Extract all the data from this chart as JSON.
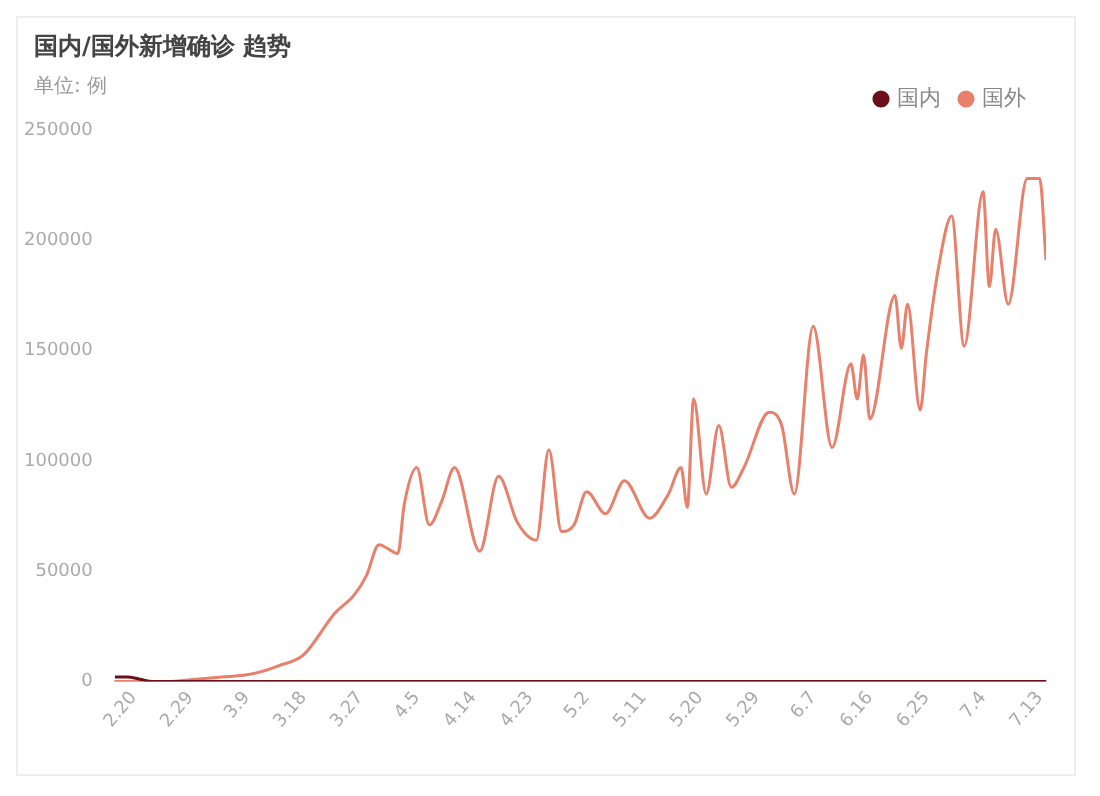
{
  "chart_data": {
    "type": "line",
    "title": "国内/国外新增确诊 趋势",
    "subtitle": "单位: 例",
    "x": [
      "--02-17",
      "--02-19",
      "--02-21",
      "--02-23",
      "--02-26",
      "--03-01",
      "--03-05",
      "--03-09",
      "--03-12",
      "--03-14",
      "--03-18",
      "--03-23",
      "--03-26",
      "--03-28",
      "--03-30",
      "--04-02",
      "--04-03",
      "--04-05",
      "--04-07",
      "--04-09",
      "--04-11",
      "--04-15",
      "--04-18",
      "--04-21",
      "--04-24",
      "--04-26",
      "--04-28",
      "--04-30",
      "--05-02",
      "--05-05",
      "--05-08",
      "--05-12",
      "--05-15",
      "--05-17",
      "--05-18",
      "--05-19",
      "--05-21",
      "--05-23",
      "--05-25",
      "--05-27",
      "--05-31",
      "--06-02",
      "--06-04",
      "--06-07",
      "--06-10",
      "--06-13",
      "--06-14",
      "--06-15",
      "--06-16",
      "--06-20",
      "--06-21",
      "--06-22",
      "--06-24",
      "--06-25",
      "--06-27",
      "--06-29",
      "--07-01",
      "--07-04",
      "--07-05",
      "--07-06",
      "--07-08",
      "--07-11",
      "--07-13",
      "--07-14"
    ],
    "series": [
      {
        "name": "国内",
        "color": "#6b0f1a",
        "values": [
          2000,
          2000,
          1000,
          0,
          0,
          0,
          0,
          0,
          0,
          0,
          0,
          0,
          0,
          0,
          0,
          0,
          0,
          0,
          0,
          0,
          0,
          0,
          0,
          0,
          0,
          0,
          0,
          0,
          0,
          0,
          0,
          0,
          0,
          0,
          0,
          0,
          0,
          0,
          0,
          0,
          0,
          0,
          0,
          0,
          0,
          0,
          0,
          0,
          0,
          0,
          0,
          0,
          0,
          0,
          0,
          0,
          0,
          0,
          0,
          0,
          0,
          0,
          0,
          0
        ]
      },
      {
        "name": "国外",
        "color": "#e8806b",
        "values": [
          0,
          0,
          0,
          0,
          0,
          1000,
          2000,
          3000,
          5000,
          7000,
          12000,
          31000,
          39000,
          48000,
          62000,
          58000,
          80000,
          97000,
          71000,
          82000,
          97000,
          59000,
          93000,
          72000,
          64000,
          105000,
          68000,
          71000,
          86000,
          76000,
          91000,
          74000,
          85000,
          97000,
          79000,
          128000,
          85000,
          116000,
          88000,
          97000,
          122000,
          116000,
          85000,
          161000,
          106000,
          144000,
          128000,
          148000,
          119000,
          175000,
          151000,
          171000,
          123000,
          149000,
          189000,
          211000,
          152000,
          222000,
          179000,
          205000,
          171000,
          228000,
          228000,
          191000
        ]
      }
    ],
    "xlim": [
      "--02-17",
      "--07-14"
    ],
    "xticks": [
      {
        "value": "--02-20",
        "label": "2.20"
      },
      {
        "value": "--02-29",
        "label": "2.29"
      },
      {
        "value": "--03-09",
        "label": "3.9"
      },
      {
        "value": "--03-18",
        "label": "3.18"
      },
      {
        "value": "--03-27",
        "label": "3.27"
      },
      {
        "value": "--04-05",
        "label": "4.5"
      },
      {
        "value": "--04-14",
        "label": "4.14"
      },
      {
        "value": "--04-23",
        "label": "4.23"
      },
      {
        "value": "--05-02",
        "label": "5.2"
      },
      {
        "value": "--05-11",
        "label": "5.11"
      },
      {
        "value": "--05-20",
        "label": "5.20"
      },
      {
        "value": "--05-29",
        "label": "5.29"
      },
      {
        "value": "--06-07",
        "label": "6.7"
      },
      {
        "value": "--06-16",
        "label": "6.16"
      },
      {
        "value": "--06-25",
        "label": "6.25"
      },
      {
        "value": "--07-04",
        "label": "7.4"
      },
      {
        "value": "--07-13",
        "label": "7.13"
      }
    ],
    "ylim": [
      0,
      250000
    ],
    "yticks": [
      0,
      50000,
      100000,
      150000,
      200000,
      250000
    ],
    "grid": false,
    "legend": "top right",
    "marker": "none",
    "line_style": "solid"
  }
}
